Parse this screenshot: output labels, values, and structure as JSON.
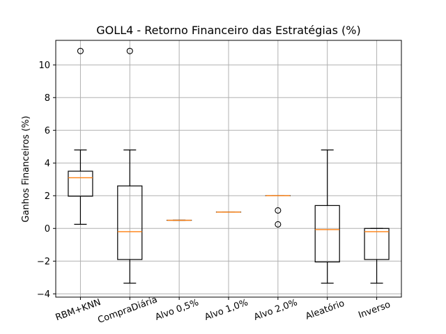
{
  "chart_data": {
    "type": "boxplot",
    "title": "GOLL4 - Retorno Financeiro das Estratégias (%)",
    "xlabel": "",
    "ylabel": "Ganhos Financeiros (%)",
    "ylim": [
      -4.2,
      11.5
    ],
    "yticks": [
      -4,
      -2,
      0,
      2,
      4,
      6,
      8,
      10
    ],
    "grid": true,
    "categories": [
      "RBM+KNN",
      "CompraDiária",
      "Alvo 0,5%",
      "Alvo 1,0%",
      "Alvo 2,0%",
      "Aleatório",
      "Inverso"
    ],
    "boxes": [
      {
        "whisker_low": 0.25,
        "q1": 1.97,
        "median": 3.1,
        "q3": 3.5,
        "whisker_high": 4.8,
        "outliers": [
          10.85
        ]
      },
      {
        "whisker_low": -3.35,
        "q1": -1.9,
        "median": -0.2,
        "q3": 2.6,
        "whisker_high": 4.8,
        "outliers": [
          10.85
        ]
      },
      {
        "whisker_low": 0.5,
        "q1": 0.5,
        "median": 0.5,
        "q3": 0.5,
        "whisker_high": 0.5,
        "outliers": []
      },
      {
        "whisker_low": 1.0,
        "q1": 1.0,
        "median": 1.0,
        "q3": 1.0,
        "whisker_high": 1.0,
        "outliers": []
      },
      {
        "whisker_low": 2.0,
        "q1": 2.0,
        "median": 2.0,
        "q3": 2.0,
        "whisker_high": 2.0,
        "outliers": [
          1.1,
          0.25
        ]
      },
      {
        "whisker_low": -3.35,
        "q1": -2.05,
        "median": -0.07,
        "q3": 1.4,
        "whisker_high": 4.8,
        "outliers": []
      },
      {
        "whisker_low": -3.35,
        "q1": -1.9,
        "median": -0.2,
        "q3": 0.0,
        "whisker_high": 0.0,
        "outliers": []
      }
    ],
    "colors": {
      "box": "#000000",
      "median": "#ff7f0e",
      "grid": "#b0b0b0",
      "outlier": "#000000"
    }
  }
}
